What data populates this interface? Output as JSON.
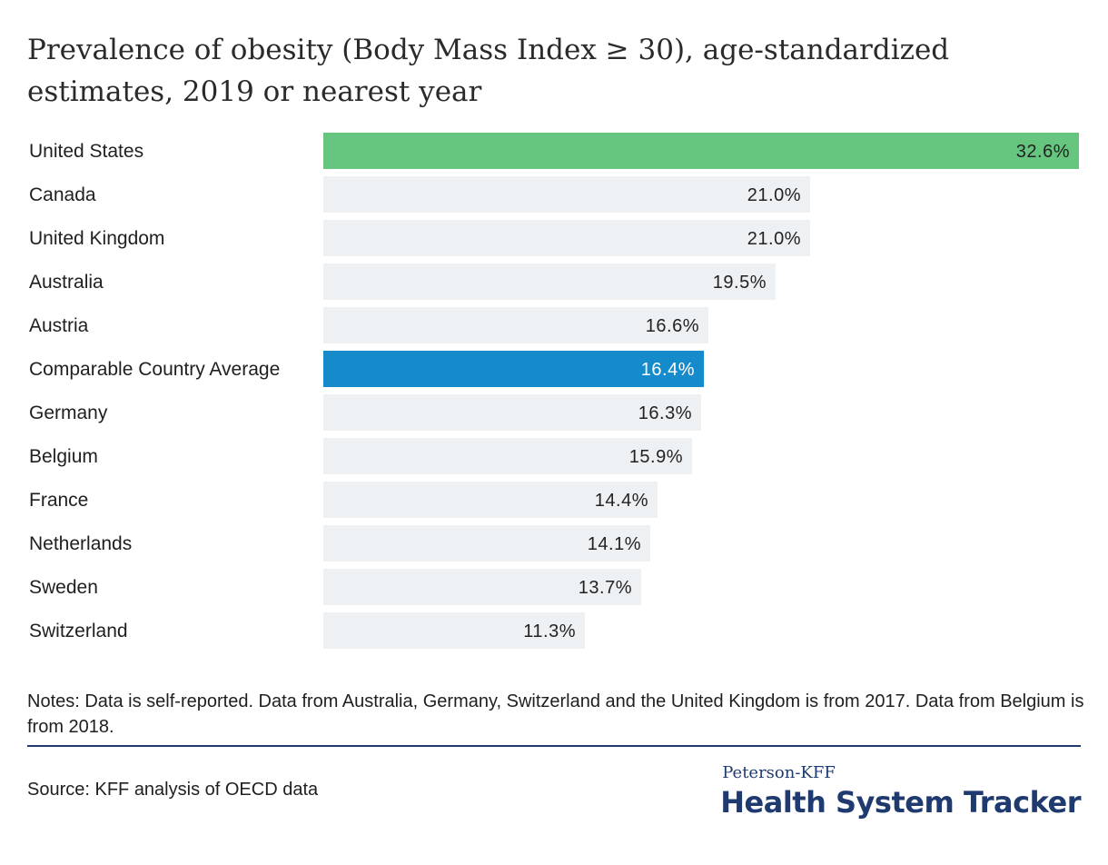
{
  "title": "Prevalence of obesity (Body Mass Index ≥ 30), age-standardized estimates, 2019 or nearest year",
  "notes": "Notes: Data is self-reported. Data from Australia, Germany, Switzerland and the United Kingdom is from 2017. Data from Belgium is from 2018.",
  "source": "Source: KFF analysis of OECD data",
  "logo": {
    "top": "Peterson-KFF",
    "bottom": "Health System Tracker"
  },
  "colors": {
    "highlight_us": "#66c57f",
    "highlight_avg": "#168bcc",
    "default_bar": "#edf1f4",
    "rule": "#1e3a6e"
  },
  "chart_data": {
    "type": "bar",
    "orientation": "horizontal",
    "title": "Prevalence of obesity (Body Mass Index ≥ 30), age-standardized estimates, 2019 or nearest year",
    "categories": [
      "United States",
      "Canada",
      "United Kingdom",
      "Australia",
      "Austria",
      "Comparable Country Average",
      "Germany",
      "Belgium",
      "France",
      "Netherlands",
      "Sweden",
      "Switzerland"
    ],
    "values": [
      32.6,
      21.0,
      21.0,
      19.5,
      16.6,
      16.4,
      16.3,
      15.9,
      14.4,
      14.1,
      13.7,
      11.3
    ],
    "value_labels": [
      "32.6%",
      "21.0%",
      "21.0%",
      "19.5%",
      "16.6%",
      "16.4%",
      "16.3%",
      "15.9%",
      "14.4%",
      "14.1%",
      "13.7%",
      "11.3%"
    ],
    "highlight": {
      "United States": "us",
      "Comparable Country Average": "avg"
    },
    "xlim": [
      0,
      32.6
    ],
    "unit": "%",
    "xlabel": "",
    "ylabel": "",
    "grid": false,
    "legend": "none"
  }
}
